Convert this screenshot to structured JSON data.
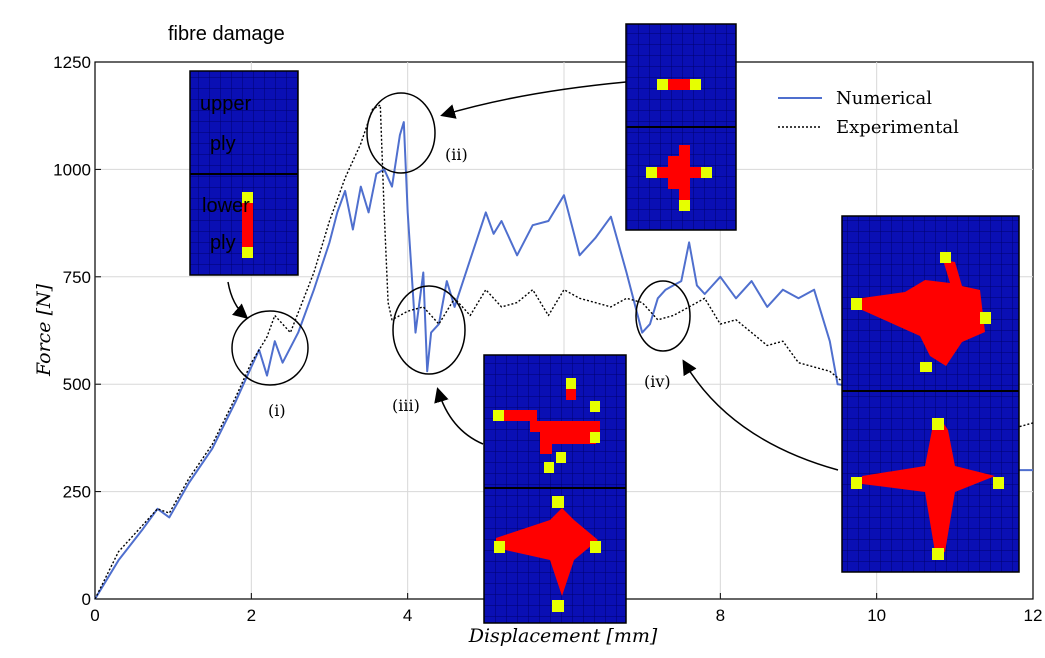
{
  "chart_data": {
    "type": "line",
    "title": "fibre damage",
    "xlabel": "Displacement [mm]",
    "ylabel": "Force [N]",
    "xlim": [
      0,
      12
    ],
    "ylim": [
      0,
      1250
    ],
    "xticks": [
      "0",
      "2",
      "4",
      "6",
      "8",
      "10",
      "12"
    ],
    "yticks": [
      "0",
      "250",
      "500",
      "750",
      "1000",
      "1250"
    ],
    "grid": true,
    "legend_position": "top-right",
    "series": [
      {
        "name": "Numerical",
        "color": "#4f6fce",
        "style": "solid",
        "x": [
          0,
          0.3,
          0.6,
          0.8,
          0.95,
          1.2,
          1.5,
          1.8,
          2.0,
          2.1,
          2.2,
          2.3,
          2.4,
          2.6,
          2.8,
          3.0,
          3.1,
          3.2,
          3.3,
          3.4,
          3.5,
          3.6,
          3.7,
          3.8,
          3.9,
          3.95,
          4.0,
          4.1,
          4.2,
          4.25,
          4.3,
          4.4,
          4.5,
          4.6,
          4.8,
          5.0,
          5.1,
          5.2,
          5.4,
          5.6,
          5.8,
          6.0,
          6.2,
          6.4,
          6.6,
          6.8,
          7.0,
          7.1,
          7.2,
          7.3,
          7.4,
          7.5,
          7.6,
          7.7,
          7.8,
          8.0,
          8.2,
          8.4,
          8.6,
          8.8,
          9.0,
          9.2,
          9.4,
          9.5,
          10.8,
          10.9,
          11.0,
          11.4,
          11.6,
          11.8,
          12.0
        ],
        "y": [
          0,
          90,
          160,
          210,
          190,
          270,
          350,
          460,
          540,
          580,
          520,
          600,
          550,
          620,
          720,
          830,
          900,
          950,
          860,
          960,
          900,
          990,
          1000,
          960,
          1080,
          1110,
          900,
          620,
          760,
          530,
          620,
          640,
          740,
          680,
          790,
          900,
          850,
          880,
          800,
          870,
          880,
          940,
          800,
          840,
          890,
          760,
          620,
          640,
          700,
          720,
          730,
          740,
          830,
          730,
          710,
          750,
          700,
          740,
          680,
          720,
          700,
          720,
          600,
          500,
          470,
          560,
          600,
          520,
          430,
          300,
          300
        ]
      },
      {
        "name": "Experimental",
        "color": "#000000",
        "style": "dotted",
        "x": [
          0,
          0.3,
          0.6,
          0.8,
          0.95,
          1.2,
          1.5,
          1.8,
          2.0,
          2.2,
          2.3,
          2.5,
          2.8,
          3.0,
          3.2,
          3.4,
          3.55,
          3.65,
          3.7,
          3.75,
          3.8,
          4.0,
          4.2,
          4.4,
          4.6,
          4.8,
          5.0,
          5.2,
          5.4,
          5.6,
          5.8,
          6.0,
          6.2,
          6.4,
          6.6,
          6.8,
          7.0,
          7.2,
          7.4,
          7.6,
          7.8,
          8.0,
          8.2,
          8.4,
          8.6,
          8.8,
          9.0,
          9.2,
          9.4,
          9.6,
          9.8,
          11.8,
          12.0
        ],
        "y": [
          0,
          110,
          170,
          210,
          200,
          280,
          360,
          470,
          550,
          610,
          660,
          620,
          760,
          880,
          980,
          1060,
          1140,
          1150,
          900,
          690,
          650,
          670,
          680,
          640,
          700,
          660,
          720,
          680,
          690,
          720,
          660,
          720,
          700,
          690,
          680,
          700,
          690,
          650,
          660,
          680,
          700,
          640,
          650,
          620,
          590,
          600,
          550,
          540,
          530,
          500,
          490,
          400,
          410
        ]
      }
    ],
    "annotations": [
      "(i)",
      "(ii)",
      "(iii)",
      "(iv)"
    ],
    "inset_labels": {
      "upper": "upper\nply",
      "lower": "lower\nply"
    }
  },
  "colors": {
    "mesh_blue": "#0a0fb4",
    "grid_line": "#000080",
    "damage_red": "#ff0000",
    "damage_yellow": "#e6ff00"
  }
}
